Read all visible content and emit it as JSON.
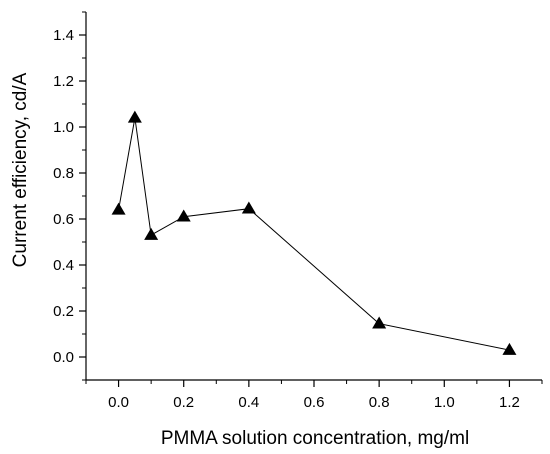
{
  "chart_data": {
    "type": "line",
    "title": "",
    "xlabel": "PMMA solution concentration, mg/ml",
    "ylabel": "Current efficiency, cd/A",
    "xlim": [
      -0.1,
      1.3
    ],
    "ylim": [
      -0.1,
      1.5
    ],
    "xticks": [
      "0.0",
      "0.2",
      "0.4",
      "0.6",
      "0.8",
      "1.0",
      "1.2"
    ],
    "yticks": [
      "0.0",
      "0.2",
      "0.4",
      "0.6",
      "0.8",
      "1.0",
      "1.2",
      "1.4"
    ],
    "marker": "triangle",
    "grid": false,
    "series": [
      {
        "x": [
          0.0,
          0.05,
          0.1,
          0.2,
          0.4,
          0.8,
          1.2
        ],
        "y": [
          0.64,
          1.04,
          0.53,
          0.61,
          0.645,
          0.145,
          0.03
        ]
      }
    ],
    "colors": {
      "line": "#000000",
      "marker": "#000000"
    }
  }
}
